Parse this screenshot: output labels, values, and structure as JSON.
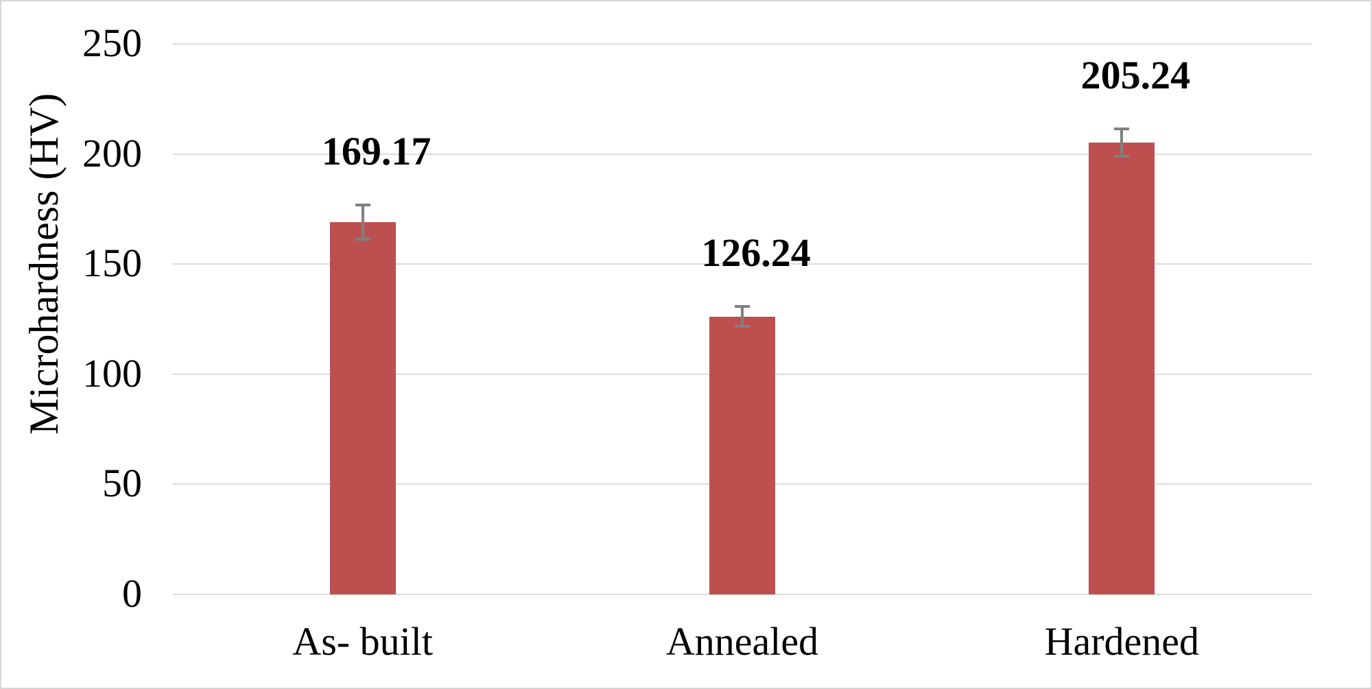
{
  "chart_data": {
    "type": "bar",
    "title": "",
    "xlabel": "",
    "ylabel": "Microhardness (HV)",
    "categories": [
      "As- built",
      "Annealed",
      "Hardened"
    ],
    "values": [
      169.17,
      126.24,
      205.24
    ],
    "data_labels": [
      "169.17",
      "126.24",
      "205.24"
    ],
    "error_bars": [
      7.8,
      4.6,
      6.3
    ],
    "ylim": [
      0,
      250
    ],
    "ytick_interval": 50,
    "yticks": [
      "0",
      "50",
      "100",
      "150",
      "200",
      "250"
    ],
    "grid": "horizontal",
    "legend": "none",
    "colors": {
      "bar_fill": "#be4f4f",
      "error_bar": "#7f7f7f",
      "gridline": "#dbdbdb",
      "text": "#000000",
      "figure_border": "#d6d6d6",
      "background": "#ffffff"
    }
  }
}
